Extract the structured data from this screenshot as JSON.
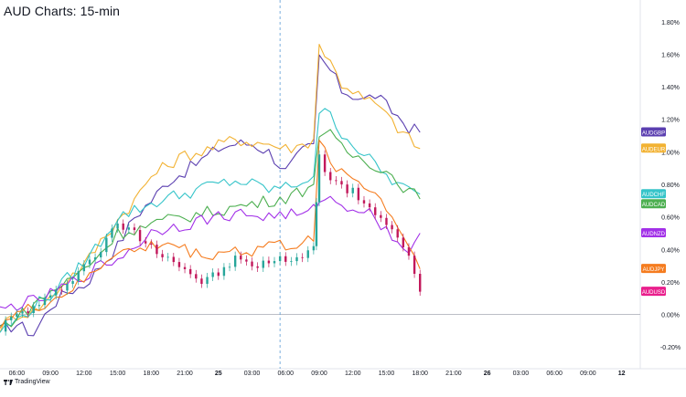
{
  "title": "AUD Charts: 15-min",
  "brand": "TradingView",
  "chart_data": {
    "type": "line",
    "title": "AUD Charts: 15-min",
    "xlabel": "",
    "ylabel": "",
    "y_unit": "%",
    "ylim": [
      -0.3,
      1.9
    ],
    "grid": false,
    "legend": "right-axis tags",
    "y_ticks": [
      "1.80%",
      "1.60%",
      "1.40%",
      "1.20%",
      "1.00%",
      "0.80%",
      "0.60%",
      "0.40%",
      "0.20%",
      "0.00%",
      "-0.20%"
    ],
    "y_tick_values": [
      1.8,
      1.6,
      1.4,
      1.2,
      1.0,
      0.8,
      0.6,
      0.4,
      0.2,
      0.0,
      -0.2
    ],
    "x_ticks": [
      "06:00",
      "09:00",
      "12:00",
      "15:00",
      "18:00",
      "21:00",
      "25",
      "03:00",
      "06:00",
      "09:00",
      "12:00",
      "15:00",
      "18:00",
      "21:00",
      "26",
      "03:00",
      "06:00",
      "09:00",
      "12"
    ],
    "x_tick_hours": [
      6,
      9,
      12,
      15,
      18,
      21,
      24,
      27,
      30,
      33,
      36,
      39,
      42,
      45,
      48,
      51,
      54,
      57,
      60
    ],
    "x_range_hours": [
      4.5,
      61.5
    ],
    "crosshair_hour": 29.5,
    "series": [
      {
        "name": "AUDGBP",
        "color": "#5b3fb0",
        "last": 1.12,
        "points": [
          [
            4.5,
            -0.1
          ],
          [
            6,
            -0.06
          ],
          [
            7.5,
            -0.12
          ],
          [
            9,
            0.05
          ],
          [
            10.5,
            0.14
          ],
          [
            12,
            0.18
          ],
          [
            13.5,
            0.3
          ],
          [
            15,
            0.42
          ],
          [
            16.5,
            0.6
          ],
          [
            18,
            0.7
          ],
          [
            19.5,
            0.82
          ],
          [
            21,
            0.88
          ],
          [
            22.5,
            0.95
          ],
          [
            24,
            1.02
          ],
          [
            25.5,
            1.05
          ],
          [
            27,
            1.05
          ],
          [
            28.5,
            1.0
          ],
          [
            30,
            0.88
          ],
          [
            31.5,
            1.0
          ],
          [
            32.5,
            1.05
          ],
          [
            33,
            1.58
          ],
          [
            34,
            1.5
          ],
          [
            35,
            1.38
          ],
          [
            36,
            1.35
          ],
          [
            37,
            1.32
          ],
          [
            38,
            1.35
          ],
          [
            39,
            1.28
          ],
          [
            40,
            1.22
          ],
          [
            41,
            1.15
          ],
          [
            42,
            1.12
          ]
        ]
      },
      {
        "name": "AUDEUR",
        "color": "#f2b233",
        "last": 1.02,
        "points": [
          [
            4.5,
            -0.08
          ],
          [
            6,
            0.0
          ],
          [
            7.5,
            0.02
          ],
          [
            9,
            0.1
          ],
          [
            10.5,
            0.22
          ],
          [
            12,
            0.3
          ],
          [
            13.5,
            0.45
          ],
          [
            15,
            0.58
          ],
          [
            16.5,
            0.7
          ],
          [
            18,
            0.85
          ],
          [
            19.5,
            0.92
          ],
          [
            21,
            0.98
          ],
          [
            22.5,
            1.0
          ],
          [
            24,
            1.04
          ],
          [
            25.5,
            1.08
          ],
          [
            27,
            1.06
          ],
          [
            28.5,
            1.05
          ],
          [
            30,
            1.02
          ],
          [
            31.5,
            1.04
          ],
          [
            32.5,
            1.08
          ],
          [
            33,
            1.66
          ],
          [
            34,
            1.55
          ],
          [
            35,
            1.42
          ],
          [
            36,
            1.38
          ],
          [
            37,
            1.32
          ],
          [
            38,
            1.3
          ],
          [
            39,
            1.22
          ],
          [
            40,
            1.15
          ],
          [
            41,
            1.08
          ],
          [
            42,
            1.02
          ]
        ]
      },
      {
        "name": "AUDCHF",
        "color": "#35c4c9",
        "last": 0.74,
        "points": [
          [
            4.5,
            -0.1
          ],
          [
            6,
            -0.04
          ],
          [
            7.5,
            0.05
          ],
          [
            9,
            0.12
          ],
          [
            10.5,
            0.22
          ],
          [
            12,
            0.32
          ],
          [
            13.5,
            0.45
          ],
          [
            15,
            0.6
          ],
          [
            16.5,
            0.64
          ],
          [
            18,
            0.68
          ],
          [
            19.5,
            0.72
          ],
          [
            21,
            0.74
          ],
          [
            22.5,
            0.78
          ],
          [
            24,
            0.8
          ],
          [
            25.5,
            0.82
          ],
          [
            27,
            0.8
          ],
          [
            28.5,
            0.77
          ],
          [
            30,
            0.78
          ],
          [
            31.5,
            0.82
          ],
          [
            32.5,
            0.85
          ],
          [
            33,
            1.25
          ],
          [
            34,
            1.22
          ],
          [
            35,
            1.12
          ],
          [
            36,
            1.05
          ],
          [
            37,
            0.98
          ],
          [
            38,
            0.92
          ],
          [
            39,
            0.85
          ],
          [
            40,
            0.8
          ],
          [
            41,
            0.76
          ],
          [
            42,
            0.74
          ]
        ]
      },
      {
        "name": "AUDCAD",
        "color": "#4caf50",
        "last": 0.71,
        "points": [
          [
            4.5,
            -0.08
          ],
          [
            6,
            -0.02
          ],
          [
            7.5,
            0.06
          ],
          [
            9,
            0.14
          ],
          [
            10.5,
            0.2
          ],
          [
            12,
            0.28
          ],
          [
            13.5,
            0.38
          ],
          [
            15,
            0.5
          ],
          [
            16.5,
            0.52
          ],
          [
            18,
            0.55
          ],
          [
            19.5,
            0.58
          ],
          [
            21,
            0.6
          ],
          [
            22.5,
            0.62
          ],
          [
            24,
            0.64
          ],
          [
            25.5,
            0.66
          ],
          [
            27,
            0.68
          ],
          [
            28.5,
            0.7
          ],
          [
            30,
            0.72
          ],
          [
            31.5,
            0.76
          ],
          [
            32.5,
            0.8
          ],
          [
            33,
            1.12
          ],
          [
            34,
            1.1
          ],
          [
            35,
            1.02
          ],
          [
            36,
            0.98
          ],
          [
            37,
            0.95
          ],
          [
            38,
            0.92
          ],
          [
            39,
            0.88
          ],
          [
            40,
            0.82
          ],
          [
            41,
            0.76
          ],
          [
            42,
            0.71
          ]
        ]
      },
      {
        "name": "AUDNZD",
        "color": "#a230e8",
        "last": 0.5,
        "points": [
          [
            4.5,
            0.02
          ],
          [
            6,
            0.06
          ],
          [
            7.5,
            0.08
          ],
          [
            9,
            0.12
          ],
          [
            10.5,
            0.18
          ],
          [
            12,
            0.24
          ],
          [
            13.5,
            0.3
          ],
          [
            15,
            0.34
          ],
          [
            16.5,
            0.42
          ],
          [
            18,
            0.5
          ],
          [
            19.5,
            0.54
          ],
          [
            21,
            0.55
          ],
          [
            22.5,
            0.58
          ],
          [
            24,
            0.6
          ],
          [
            25.5,
            0.62
          ],
          [
            27,
            0.61
          ],
          [
            28.5,
            0.6
          ],
          [
            30,
            0.62
          ],
          [
            31.5,
            0.6
          ],
          [
            32.5,
            0.64
          ],
          [
            33,
            0.72
          ],
          [
            34,
            0.7
          ],
          [
            35,
            0.68
          ],
          [
            36,
            0.66
          ],
          [
            37,
            0.64
          ],
          [
            38,
            0.6
          ],
          [
            39,
            0.52
          ],
          [
            40,
            0.44
          ],
          [
            41,
            0.4
          ],
          [
            42,
            0.5
          ]
        ]
      },
      {
        "name": "AUDJPY",
        "color": "#f57c1f",
        "last": 0.28,
        "points": [
          [
            4.5,
            -0.05
          ],
          [
            6,
            0.0
          ],
          [
            7.5,
            0.04
          ],
          [
            9,
            0.08
          ],
          [
            10.5,
            0.14
          ],
          [
            12,
            0.2
          ],
          [
            13.5,
            0.3
          ],
          [
            15,
            0.4
          ],
          [
            16.5,
            0.38
          ],
          [
            18,
            0.42
          ],
          [
            19.5,
            0.44
          ],
          [
            21,
            0.4
          ],
          [
            22.5,
            0.36
          ],
          [
            24,
            0.38
          ],
          [
            25.5,
            0.4
          ],
          [
            27,
            0.38
          ],
          [
            28.5,
            0.44
          ],
          [
            30,
            0.42
          ],
          [
            31.5,
            0.44
          ],
          [
            32.5,
            0.45
          ],
          [
            33,
            1.05
          ],
          [
            34,
            0.95
          ],
          [
            35,
            0.88
          ],
          [
            36,
            0.84
          ],
          [
            37,
            0.8
          ],
          [
            38,
            0.74
          ],
          [
            39,
            0.66
          ],
          [
            40,
            0.55
          ],
          [
            41,
            0.42
          ],
          [
            42,
            0.28
          ]
        ]
      },
      {
        "name": "AUDUSD",
        "color": "#e91e8c",
        "last": 0.14,
        "style": "candles",
        "points": [
          [
            4.5,
            -0.08
          ],
          [
            6,
            0.0
          ],
          [
            7.5,
            0.04
          ],
          [
            9,
            0.1
          ],
          [
            10.5,
            0.2
          ],
          [
            12,
            0.3
          ],
          [
            13.5,
            0.4
          ],
          [
            15,
            0.56
          ],
          [
            16.5,
            0.5
          ],
          [
            18,
            0.42
          ],
          [
            19.5,
            0.36
          ],
          [
            21,
            0.28
          ],
          [
            22.5,
            0.2
          ],
          [
            24,
            0.25
          ],
          [
            25.5,
            0.34
          ],
          [
            27,
            0.3
          ],
          [
            28.5,
            0.32
          ],
          [
            30,
            0.34
          ],
          [
            31.5,
            0.36
          ],
          [
            32.5,
            0.42
          ],
          [
            33,
            0.96
          ],
          [
            34,
            0.85
          ],
          [
            35,
            0.78
          ],
          [
            36,
            0.75
          ],
          [
            37,
            0.7
          ],
          [
            38,
            0.62
          ],
          [
            39,
            0.55
          ],
          [
            40,
            0.45
          ],
          [
            41,
            0.38
          ],
          [
            42,
            0.14
          ]
        ]
      }
    ]
  }
}
